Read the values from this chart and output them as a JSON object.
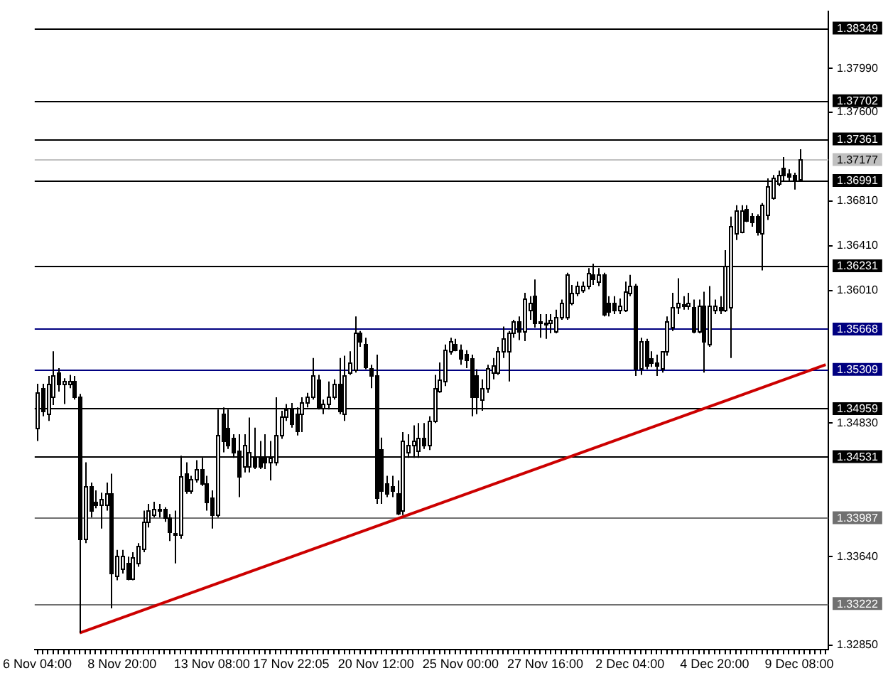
{
  "chart_data": {
    "type": "candlestick",
    "categories": [
      "6 Nov 04:00",
      null,
      null,
      null,
      null,
      null,
      null,
      null,
      null,
      null,
      null,
      null,
      null,
      null,
      null,
      null,
      "8 Nov 20:00",
      null,
      null,
      null,
      null,
      null,
      null,
      null,
      null,
      null,
      null,
      null,
      null,
      null,
      null,
      null,
      null,
      "13 Nov 08:00",
      null,
      null,
      null,
      null,
      null,
      null,
      null,
      null,
      null,
      null,
      null,
      null,
      null,
      null,
      "17 Nov 22:05",
      null,
      null,
      null,
      null,
      null,
      null,
      null,
      null,
      null,
      null,
      null,
      null,
      null,
      null,
      null,
      "20 Nov 12:00",
      null,
      null,
      null,
      null,
      null,
      null,
      null,
      null,
      null,
      null,
      null,
      null,
      null,
      null,
      null,
      "25 Nov 00:00",
      null,
      null,
      null,
      null,
      null,
      null,
      null,
      null,
      null,
      null,
      null,
      null,
      null,
      null,
      null,
      "27 Nov 16:00",
      null,
      null,
      null,
      null,
      null,
      null,
      null,
      null,
      null,
      null,
      null,
      null,
      null,
      null,
      null,
      "2 Dec 04:00",
      null,
      null,
      null,
      null,
      null,
      null,
      null,
      null,
      null,
      null,
      null,
      null,
      null,
      null,
      null,
      "4 Dec 20:00",
      null,
      null,
      null,
      null,
      null,
      null,
      null,
      null,
      null,
      null,
      null,
      null,
      null,
      null,
      null,
      "9 Dec 08:00",
      null,
      null,
      null,
      null,
      null
    ],
    "series": [
      {
        "color": "#000000",
        "ohlc": [
          [
            1.3479,
            1.3518,
            1.3467,
            1.351
          ],
          [
            1.3514,
            1.3518,
            1.3489,
            1.3494
          ],
          [
            1.3491,
            1.3525,
            1.3485,
            1.3518
          ],
          [
            1.3506,
            1.3547,
            1.3499,
            1.3526
          ],
          [
            1.3528,
            1.3532,
            1.3511,
            1.3518
          ],
          [
            1.3518,
            1.3523,
            1.35,
            1.352
          ],
          [
            1.3518,
            1.3526,
            1.3514,
            1.352
          ],
          [
            1.3521,
            1.3525,
            1.3504,
            1.3506
          ],
          [
            1.3506,
            1.3509,
            1.3296,
            1.338
          ],
          [
            1.338,
            1.3448,
            1.3376,
            1.3427
          ],
          [
            1.3427,
            1.343,
            1.3399,
            1.3405
          ],
          [
            1.3413,
            1.3423,
            1.3407,
            1.341
          ],
          [
            1.341,
            1.3421,
            1.3389,
            1.3415
          ],
          [
            1.3411,
            1.343,
            1.3405,
            1.342
          ],
          [
            1.342,
            1.3438,
            1.3318,
            1.3349
          ],
          [
            1.3347,
            1.337,
            1.3343,
            1.3365
          ],
          [
            1.3353,
            1.337,
            1.3349,
            1.3365
          ],
          [
            1.3359,
            1.3364,
            1.3343,
            1.3345
          ],
          [
            1.3345,
            1.3368,
            1.3343,
            1.3364
          ],
          [
            1.3358,
            1.3376,
            1.3355,
            1.3374
          ],
          [
            1.3371,
            1.3405,
            1.3368,
            1.3395
          ],
          [
            1.3395,
            1.3411,
            1.339,
            1.3405
          ],
          [
            1.3402,
            1.3413,
            1.3399,
            1.3407
          ],
          [
            1.3405,
            1.3411,
            1.3399,
            1.3406
          ],
          [
            1.3406,
            1.3408,
            1.3395,
            1.3399
          ],
          [
            1.3399,
            1.3402,
            1.3378,
            1.3386
          ],
          [
            1.3384,
            1.3405,
            1.3358,
            1.3385
          ],
          [
            1.3384,
            1.3454,
            1.338,
            1.3436
          ],
          [
            1.3438,
            1.3448,
            1.342,
            1.3423
          ],
          [
            1.3423,
            1.3436,
            1.342,
            1.3433
          ],
          [
            1.3433,
            1.345,
            1.343,
            1.3442
          ],
          [
            1.3442,
            1.3452,
            1.3427,
            1.343
          ],
          [
            1.343,
            1.3436,
            1.3405,
            1.3413
          ],
          [
            1.3417,
            1.3423,
            1.3389,
            1.3401
          ],
          [
            1.3401,
            1.3495,
            1.3399,
            1.3473
          ],
          [
            1.3491,
            1.3497,
            1.3457,
            1.3467
          ],
          [
            1.3479,
            1.3495,
            1.346,
            1.3464
          ],
          [
            1.347,
            1.3473,
            1.3452,
            1.3457
          ],
          [
            1.3458,
            1.3473,
            1.3417,
            1.3436
          ],
          [
            1.3444,
            1.3473,
            1.3439,
            1.3463
          ],
          [
            1.3445,
            1.3488,
            1.3439,
            1.3457
          ],
          [
            1.3454,
            1.3479,
            1.3442,
            1.3444
          ],
          [
            1.3452,
            1.3467,
            1.3442,
            1.3445
          ],
          [
            1.3454,
            1.3473,
            1.3442,
            1.3448
          ],
          [
            1.3448,
            1.3467,
            1.3432,
            1.3452
          ],
          [
            1.3448,
            1.3506,
            1.3445,
            1.3473
          ],
          [
            1.3473,
            1.3494,
            1.3469,
            1.3489
          ],
          [
            1.3489,
            1.35,
            1.3485,
            1.3495
          ],
          [
            1.3497,
            1.3501,
            1.3479,
            1.3483
          ],
          [
            1.3491,
            1.3497,
            1.3472,
            1.3476
          ],
          [
            1.3491,
            1.3506,
            1.3475,
            1.3501
          ],
          [
            1.3501,
            1.351,
            1.3497,
            1.3507
          ],
          [
            1.3506,
            1.3541,
            1.3504,
            1.3525
          ],
          [
            1.3522,
            1.3526,
            1.3495,
            1.3497
          ],
          [
            1.3497,
            1.3504,
            1.3491,
            1.35
          ],
          [
            1.35,
            1.352,
            1.3495,
            1.3507
          ],
          [
            1.3506,
            1.3522,
            1.3504,
            1.3518
          ],
          [
            1.3518,
            1.3541,
            1.3491,
            1.3494
          ],
          [
            1.3491,
            1.3543,
            1.3485,
            1.3525
          ],
          [
            1.3528,
            1.3547,
            1.3526,
            1.3537
          ],
          [
            1.3531,
            1.3578,
            1.3528,
            1.3563
          ],
          [
            1.3563,
            1.3565,
            1.3551,
            1.3556
          ],
          [
            1.3553,
            1.3559,
            1.3531,
            1.3533
          ],
          [
            1.3532,
            1.3535,
            1.3514,
            1.3526
          ],
          [
            1.3525,
            1.3544,
            1.3411,
            1.3417
          ],
          [
            1.346,
            1.347,
            1.3411,
            1.3423
          ],
          [
            1.343,
            1.3436,
            1.3417,
            1.342
          ],
          [
            1.3427,
            1.3436,
            1.3417,
            1.3423
          ],
          [
            1.3421,
            1.3432,
            1.3401,
            1.3403
          ],
          [
            1.3405,
            1.3475,
            1.3401,
            1.3467
          ],
          [
            1.3457,
            1.3473,
            1.3452,
            1.3463
          ],
          [
            1.3463,
            1.3481,
            1.3452,
            1.3467
          ],
          [
            1.3458,
            1.3483,
            1.3452,
            1.347
          ],
          [
            1.347,
            1.3483,
            1.346,
            1.3463
          ],
          [
            1.3463,
            1.3489,
            1.3459,
            1.3485
          ],
          [
            1.3485,
            1.3526,
            1.3483,
            1.3514
          ],
          [
            1.3512,
            1.3537,
            1.351,
            1.3522
          ],
          [
            1.352,
            1.3553,
            1.3516,
            1.3549
          ],
          [
            1.3547,
            1.3559,
            1.3544,
            1.3556
          ],
          [
            1.3553,
            1.3558,
            1.3547,
            1.3549
          ],
          [
            1.3549,
            1.3553,
            1.3535,
            1.3541
          ],
          [
            1.3544,
            1.3548,
            1.3532,
            1.354
          ],
          [
            1.3541,
            1.3544,
            1.3489,
            1.3506
          ],
          [
            1.3526,
            1.3531,
            1.3491,
            1.3506
          ],
          [
            1.3504,
            1.3522,
            1.3494,
            1.3514
          ],
          [
            1.3514,
            1.3535,
            1.351,
            1.3532
          ],
          [
            1.3528,
            1.3541,
            1.3522,
            1.3535
          ],
          [
            1.3528,
            1.3551,
            1.3526,
            1.3547
          ],
          [
            1.3547,
            1.3569,
            1.3541,
            1.3559
          ],
          [
            1.3547,
            1.3565,
            1.352,
            1.3563
          ],
          [
            1.3563,
            1.3575,
            1.3559,
            1.3574
          ],
          [
            1.3574,
            1.3578,
            1.3557,
            1.3565
          ],
          [
            1.3565,
            1.3599,
            1.3556,
            1.3594
          ],
          [
            1.3584,
            1.3596,
            1.3575,
            1.359
          ],
          [
            1.3596,
            1.3611,
            1.3568,
            1.3572
          ],
          [
            1.3572,
            1.358,
            1.3559,
            1.3574
          ],
          [
            1.3573,
            1.358,
            1.3558,
            1.3572
          ],
          [
            1.3572,
            1.358,
            1.3563,
            1.3575
          ],
          [
            1.3565,
            1.3584,
            1.3563,
            1.3578
          ],
          [
            1.3578,
            1.3593,
            1.3575,
            1.359
          ],
          [
            1.3578,
            1.3617,
            1.3575,
            1.3615
          ],
          [
            1.359,
            1.3606,
            1.3588,
            1.3599
          ],
          [
            1.3599,
            1.3609,
            1.3596,
            1.3605
          ],
          [
            1.3602,
            1.3609,
            1.3599,
            1.3605
          ],
          [
            1.3605,
            1.3621,
            1.3602,
            1.3617
          ],
          [
            1.3615,
            1.3625,
            1.3606,
            1.3612
          ],
          [
            1.3609,
            1.3621,
            1.3605,
            1.3615
          ],
          [
            1.3615,
            1.3617,
            1.3578,
            1.358
          ],
          [
            1.359,
            1.3596,
            1.3578,
            1.3582
          ],
          [
            1.359,
            1.3596,
            1.358,
            1.3584
          ],
          [
            1.3584,
            1.3594,
            1.358,
            1.3588
          ],
          [
            1.3584,
            1.3609,
            1.3582,
            1.36
          ],
          [
            1.3599,
            1.3615,
            1.3596,
            1.3605
          ],
          [
            1.3605,
            1.3607,
            1.3525,
            1.3532
          ],
          [
            1.3532,
            1.3559,
            1.3526,
            1.3556
          ],
          [
            1.3556,
            1.3558,
            1.3531,
            1.3535
          ],
          [
            1.3541,
            1.3547,
            1.3533,
            1.3537
          ],
          [
            1.3537,
            1.3544,
            1.3525,
            1.3535
          ],
          [
            1.3532,
            1.3547,
            1.3528,
            1.3547
          ],
          [
            1.3547,
            1.3578,
            1.3543,
            1.3574
          ],
          [
            1.3569,
            1.3599,
            1.3565,
            1.3586
          ],
          [
            1.3586,
            1.3612,
            1.358,
            1.359
          ],
          [
            1.3589,
            1.3596,
            1.3584,
            1.3588
          ],
          [
            1.3588,
            1.3599,
            1.3584,
            1.359
          ],
          [
            1.3586,
            1.3593,
            1.3563,
            1.3565
          ],
          [
            1.3565,
            1.3593,
            1.3563,
            1.3588
          ],
          [
            1.3588,
            1.36,
            1.3528,
            1.3556
          ],
          [
            1.3553,
            1.3605,
            1.3551,
            1.3588
          ],
          [
            1.3584,
            1.3593,
            1.358,
            1.3588
          ],
          [
            1.3586,
            1.3596,
            1.358,
            1.3584
          ],
          [
            1.3584,
            1.3637,
            1.3582,
            1.3623
          ],
          [
            1.3586,
            1.3667,
            1.3541,
            1.3658
          ],
          [
            1.3652,
            1.3677,
            1.3646,
            1.3673
          ],
          [
            1.3654,
            1.3677,
            1.3652,
            1.3673
          ],
          [
            1.3674,
            1.3677,
            1.3662,
            1.3664
          ],
          [
            1.3667,
            1.367,
            1.3658,
            1.3662
          ],
          [
            1.3667,
            1.3669,
            1.365,
            1.3654
          ],
          [
            1.3652,
            1.3679,
            1.3619,
            1.3677
          ],
          [
            1.3669,
            1.3701,
            1.3664,
            1.3694
          ],
          [
            1.3684,
            1.3704,
            1.3682,
            1.3701
          ],
          [
            1.3696,
            1.3708,
            1.3694,
            1.3704
          ],
          [
            1.3711,
            1.372,
            1.3699,
            1.3704
          ],
          [
            1.3705,
            1.3709,
            1.3699,
            1.3703
          ],
          [
            1.3704,
            1.3706,
            1.3691,
            1.37
          ],
          [
            1.37,
            1.3727,
            1.3698,
            1.3718
          ],
          null,
          null,
          null,
          null,
          null
        ]
      },
      {
        "type": "line",
        "color": "#cc0000",
        "values": [
          null,
          null,
          null,
          null,
          null,
          null,
          null,
          null,
          1.3296,
          null,
          null,
          null,
          null,
          null,
          null,
          null,
          null,
          null,
          null,
          null,
          null,
          null,
          null,
          null,
          null,
          null,
          null,
          null,
          null,
          null,
          null,
          null,
          null,
          null,
          null,
          null,
          null,
          null,
          null,
          null,
          null,
          null,
          null,
          null,
          null,
          null,
          null,
          null,
          null,
          null,
          null,
          null,
          null,
          null,
          null,
          null,
          null,
          null,
          null,
          null,
          null,
          null,
          null,
          null,
          null,
          null,
          null,
          null,
          null,
          null,
          null,
          null,
          null,
          null,
          null,
          null,
          null,
          null,
          null,
          null,
          null,
          null,
          null,
          null,
          null,
          null,
          null,
          null,
          null,
          null,
          null,
          null,
          null,
          null,
          null,
          null,
          null,
          null,
          null,
          null,
          null,
          null,
          null,
          null,
          null,
          null,
          null,
          null,
          null,
          null,
          null,
          null,
          null,
          null,
          null,
          null,
          null,
          null,
          null,
          null,
          null,
          null,
          null,
          null,
          null,
          null,
          null,
          null,
          null,
          null,
          null,
          null,
          null,
          null,
          null,
          null,
          null,
          null,
          null,
          null,
          null,
          null,
          null,
          null,
          null,
          null,
          null,
          null,
          null,
          1.3535
        ]
      }
    ],
    "ylim": [
      1.3281,
      1.385
    ],
    "yticks": [
      {
        "value": 1.3799,
        "label": "1.37990"
      },
      {
        "value": 1.376,
        "label": "1.37600"
      },
      {
        "value": 1.3681,
        "label": "1.36810"
      },
      {
        "value": 1.3641,
        "label": "1.36410"
      },
      {
        "value": 1.3601,
        "label": "1.36010"
      },
      {
        "value": 1.3483,
        "label": "1.34830"
      },
      {
        "value": 1.3364,
        "label": "1.33640"
      },
      {
        "value": 1.3285,
        "label": "1.32850"
      }
    ],
    "ref_lines": [
      {
        "axis": "y",
        "value": 1.38349,
        "label": "1.38349",
        "color": "#000000"
      },
      {
        "axis": "y",
        "value": 1.37702,
        "label": "1.37702",
        "color": "#000000"
      },
      {
        "axis": "y",
        "value": 1.37361,
        "label": "1.37361",
        "color": "#000000"
      },
      {
        "axis": "y",
        "value": 1.37177,
        "label": "1.37177",
        "color": "#c0c0c0"
      },
      {
        "axis": "y",
        "value": 1.36991,
        "label": "1.36991",
        "color": "#000000"
      },
      {
        "axis": "y",
        "value": 1.36231,
        "label": "1.36231",
        "color": "#000000"
      },
      {
        "axis": "y",
        "value": 1.35668,
        "label": "1.35668",
        "color": "#000080"
      },
      {
        "axis": "y",
        "value": 1.35309,
        "label": "1.35309",
        "color": "#000080"
      },
      {
        "axis": "y",
        "value": 1.34959,
        "label": "1.34959",
        "color": "#000000"
      },
      {
        "axis": "y",
        "value": 1.34531,
        "label": "1.34531",
        "color": "#000000"
      },
      {
        "axis": "y",
        "value": 1.33987,
        "label": "1.33987",
        "color": "#707070"
      },
      {
        "axis": "y",
        "value": 1.33222,
        "label": "1.33222",
        "color": "#707070"
      }
    ],
    "legend": false
  }
}
